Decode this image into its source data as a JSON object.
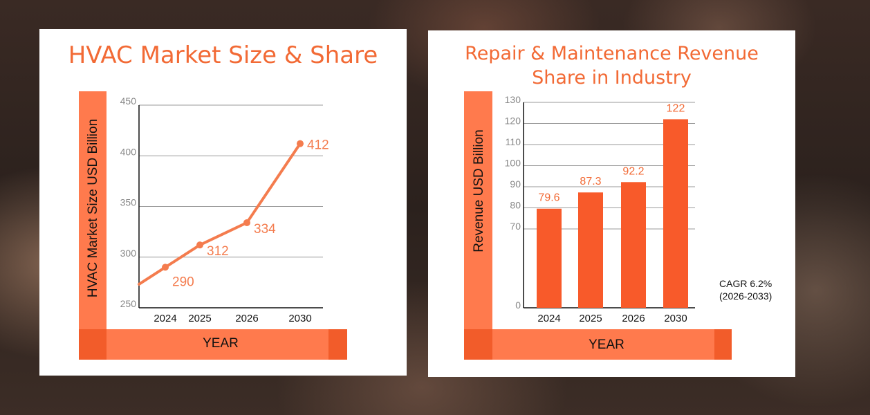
{
  "chart_data": [
    {
      "type": "line",
      "title": "HVAC Market Size & Share",
      "ylabel": "HVAC Market Size USD Billion",
      "xlabel": "YEAR",
      "categories": [
        "2024",
        "2025",
        "2026",
        "2030"
      ],
      "values": [
        290,
        312,
        334,
        412
      ],
      "data_labels": [
        "290",
        "312",
        "334",
        "412"
      ],
      "yticks": [
        "250",
        "300",
        "350",
        "400",
        "450"
      ],
      "ylim": [
        250,
        450
      ],
      "grid": true,
      "color": "#f47c4e"
    },
    {
      "type": "bar",
      "title": "Repair & Maintenance Revenue Share in Industry",
      "ylabel": "Revenue USD Billion",
      "xlabel": "YEAR",
      "categories": [
        "2024",
        "2025",
        "2026",
        "2030"
      ],
      "values": [
        79.6,
        87.3,
        92.2,
        122
      ],
      "data_labels": [
        "79.6",
        "87.3",
        "92.2",
        "122"
      ],
      "yticks": [
        "0",
        "70",
        "80",
        "90",
        "100",
        "110",
        "120",
        "130"
      ],
      "ylim": [
        0,
        130
      ],
      "axis_break": [
        0,
        70
      ],
      "grid": true,
      "color": "#f85a2a",
      "annotation": {
        "line1": "CAGR 6.2%",
        "line2": "(2026-2033)"
      }
    }
  ]
}
